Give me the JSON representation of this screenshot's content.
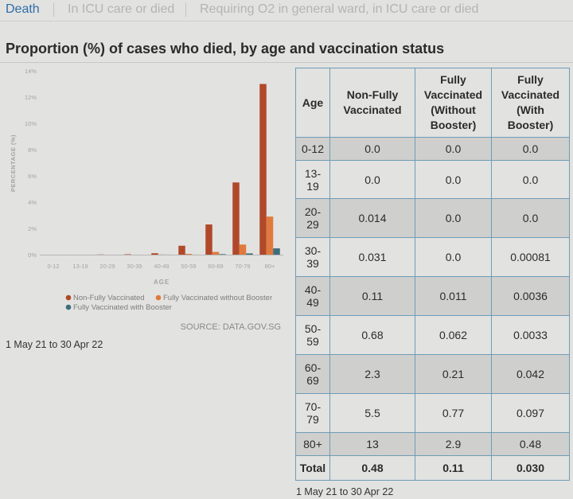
{
  "tabs": [
    {
      "label": "Death",
      "active": true
    },
    {
      "label": "In ICU care or died",
      "active": false
    },
    {
      "label": "Requiring O2 in general ward, in ICU care or died",
      "active": false
    }
  ],
  "section_title": "Proportion (%) of cases who died, by age and vaccination status",
  "colors": {
    "non_fully": "#b0492a",
    "fully_without_booster": "#e07a3c",
    "fully_with_booster": "#3c6e7c",
    "tab_active": "#2f6da8",
    "table_border": "#6f9cb8"
  },
  "chart_data": {
    "type": "bar",
    "title": "",
    "xlabel": "AGE",
    "ylabel": "PERCENTAGE (%)",
    "ylim": [
      0,
      14
    ],
    "yticks": [
      "0%",
      "2%",
      "4%",
      "6%",
      "8%",
      "10%",
      "12%",
      "14%"
    ],
    "ytick_values": [
      0,
      2,
      4,
      6,
      8,
      10,
      12,
      14
    ],
    "categories": [
      "0-12",
      "13-19",
      "20-29",
      "30-39",
      "40-49",
      "50-59",
      "60-69",
      "70-79",
      "80+"
    ],
    "series": [
      {
        "name": "Non-Fully Vaccinated",
        "values": [
          0.0,
          0.0,
          0.014,
          0.031,
          0.11,
          0.68,
          2.3,
          5.5,
          13
        ]
      },
      {
        "name": "Fully Vaccinated without Booster",
        "values": [
          0.0,
          0.0,
          0.0,
          0.0,
          0.011,
          0.062,
          0.21,
          0.77,
          2.9
        ]
      },
      {
        "name": "Fully Vaccinated with Booster",
        "values": [
          0.0,
          0.0,
          0.0,
          0.00081,
          0.0036,
          0.0033,
          0.042,
          0.097,
          0.48
        ]
      }
    ],
    "legend_position": "bottom",
    "grid": false
  },
  "source_text": "SOURCE: DATA.GOV.SG",
  "date_range": "1 May 21 to 30 Apr 22",
  "table": {
    "headers": [
      "Age",
      "Non-Fully Vaccinated",
      "Fully Vaccinated (Without Booster)",
      "Fully Vaccinated (With Booster)"
    ],
    "rows": [
      [
        "0-12",
        "0.0",
        "0.0",
        "0.0"
      ],
      [
        "13-19",
        "0.0",
        "0.0",
        "0.0"
      ],
      [
        "20-29",
        "0.014",
        "0.0",
        "0.0"
      ],
      [
        "30-39",
        "0.031",
        "0.0",
        "0.00081"
      ],
      [
        "40-49",
        "0.11",
        "0.011",
        "0.0036"
      ],
      [
        "50-59",
        "0.68",
        "0.062",
        "0.0033"
      ],
      [
        "60-69",
        "2.3",
        "0.21",
        "0.042"
      ],
      [
        "70-79",
        "5.5",
        "0.77",
        "0.097"
      ],
      [
        "80+",
        "13",
        "2.9",
        "0.48"
      ]
    ],
    "total": [
      "Total",
      "0.48",
      "0.11",
      "0.030"
    ]
  }
}
